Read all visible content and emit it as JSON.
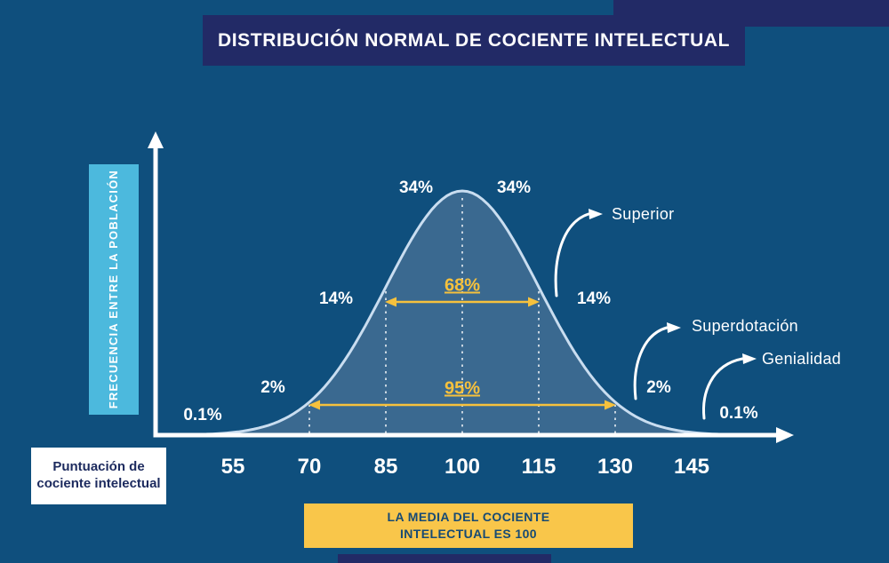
{
  "title": {
    "text": "DISTRIBUCIÓN NORMAL DE COCIENTE INTELECTUAL"
  },
  "y_axis": {
    "label": "FRECUENCIA ENTRE LA POBLACIÓN"
  },
  "x_axis": {
    "label": "Puntuación de cociente intelectual"
  },
  "mean_banner": {
    "text": "LA MEDIA DEL COCIENTE INTELECTUAL ES 100"
  },
  "annotations": [
    {
      "label": "Superior"
    },
    {
      "label": "Superdotación"
    },
    {
      "label": "Genialidad"
    }
  ],
  "colors": {
    "background": "#0f4f7d",
    "navy": "#222a66",
    "light_blue": "#4cb9dd",
    "yellow": "#f6c13d",
    "banner_yellow": "#f9c64a",
    "white": "#ffffff",
    "curve_fill": "#3e6b91",
    "curve_stroke": "#c9ddf0"
  },
  "chart_data": {
    "type": "area",
    "title": "Distribución normal de cociente intelectual",
    "xlabel": "Puntuación de cociente intelectual",
    "ylabel": "Frecuencia entre la población",
    "distribution": {
      "mean": 100,
      "sd": 15
    },
    "x_ticks": [
      55,
      70,
      85,
      100,
      115,
      130,
      145
    ],
    "x_tick_labels": [
      "55",
      "70",
      "85",
      "100",
      "115",
      "130",
      "145"
    ],
    "xlim": [
      46,
      154
    ],
    "grid": "dashed vertical lines at 70, 85, 100, 115, 130",
    "segments": [
      {
        "range": "<55",
        "percent": "0.1%"
      },
      {
        "range": "55-70",
        "percent": "2%"
      },
      {
        "range": "70-85",
        "percent": "14%"
      },
      {
        "range": "85-100",
        "percent": "34%"
      },
      {
        "range": "100-115",
        "percent": "34%"
      },
      {
        "range": "115-130",
        "percent": "14%"
      },
      {
        "range": "130-145",
        "percent": "2%"
      },
      {
        "range": ">145",
        "percent": "0.1%"
      }
    ],
    "ranges": [
      {
        "label": "68%",
        "from": 85,
        "to": 115
      },
      {
        "label": "95%",
        "from": 70,
        "to": 130
      }
    ],
    "annotations": [
      {
        "label": "Superior",
        "points_to": "115-130 region"
      },
      {
        "label": "Superdotación",
        "points_to": "130-145 region"
      },
      {
        "label": "Genialidad",
        "points_to": ">145 region"
      }
    ]
  }
}
